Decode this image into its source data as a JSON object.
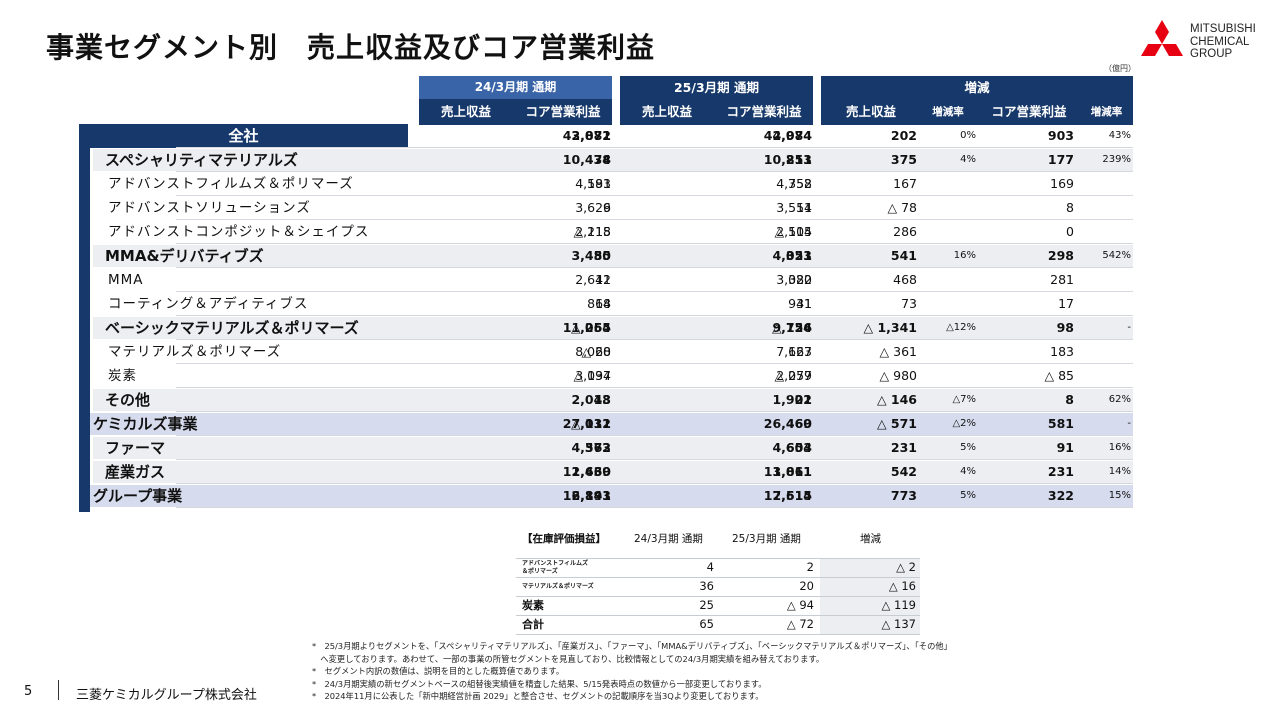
{
  "title": "事業セグメント別　売上収益及びコア営業利益",
  "unit": "（億円）",
  "logo": {
    "line1": "MITSUBISHI",
    "line2": "CHEMICAL",
    "line3": "GROUP"
  },
  "header": {
    "period1": "24/3月期 通期",
    "period2": "25/3月期 通期",
    "change": "増減",
    "sales": "売上収益",
    "core": "コア営業利益",
    "rate": "増減率"
  },
  "rows": [
    {
      "label": "全社",
      "lv": "total",
      "s1": "43,872",
      "c1": "2,081",
      "s2": "44,074",
      "c2": "2,984",
      "ds": "202",
      "dsr": "0%",
      "dc": "903",
      "dcr": "43%"
    },
    {
      "label": "スペシャリティマテリアルズ",
      "lv": "seg",
      "s1": "10,438",
      "c1": "74",
      "s2": "10,813",
      "c2": "251",
      "ds": "375",
      "dsr": "4%",
      "dc": "177",
      "dcr": "239%"
    },
    {
      "label": "アドバンストフィルムズ＆ポリマーズ",
      "lv": "sub",
      "s1": "4,591",
      "c1": "183",
      "s2": "4,758",
      "c2": "352",
      "ds": "167",
      "dsr": "",
      "dc": "169",
      "dcr": ""
    },
    {
      "label": "アドバンストソリューションズ",
      "lv": "sub",
      "s1": "3,629",
      "c1": "6",
      "s2": "3,551",
      "c2": "14",
      "ds": "△ 78",
      "dsr": "",
      "dc": "8",
      "dcr": ""
    },
    {
      "label": "アドバンストコンポジット＆シェイプス",
      "lv": "sub",
      "s1": "2,218",
      "c1": "△ 115",
      "s2": "2,504",
      "c2": "△ 115",
      "ds": "286",
      "dsr": "",
      "dc": "0",
      "dcr": ""
    },
    {
      "label": "MMA&デリバティブズ",
      "lv": "seg",
      "s1": "3,480",
      "c1": "55",
      "s2": "4,021",
      "c2": "353",
      "ds": "541",
      "dsr": "16%",
      "dc": "298",
      "dcr": "542%"
    },
    {
      "label": "MMA",
      "lv": "sub",
      "s1": "2,612",
      "c1": "41",
      "s2": "3,080",
      "c2": "322",
      "ds": "468",
      "dsr": "",
      "dc": "281",
      "dcr": ""
    },
    {
      "label": "コーティング＆アディティブス",
      "lv": "sub",
      "s1": "868",
      "c1": "14",
      "s2": "941",
      "c2": "31",
      "ds": "73",
      "dsr": "",
      "dc": "17",
      "dcr": ""
    },
    {
      "label": "ベーシックマテリアルズ＆ポリマーズ",
      "lv": "seg",
      "s1": "11,065",
      "c1": "△ 254",
      "s2": "9,724",
      "c2": "△ 156",
      "ds": "△ 1,341",
      "dsr": "△12%",
      "dc": "98",
      "dcr": "-"
    },
    {
      "label": "マテリアルズ＆ポリマーズ",
      "lv": "sub",
      "s1": "8,028",
      "c1": "△ 60",
      "s2": "7,667",
      "c2": "123",
      "ds": "△ 361",
      "dsr": "",
      "dc": "183",
      "dcr": ""
    },
    {
      "label": "炭素",
      "lv": "sub",
      "s1": "3,037",
      "c1": "△ 194",
      "s2": "2,057",
      "c2": "△ 279",
      "ds": "△ 980",
      "dsr": "",
      "dc": "△ 85",
      "dcr": ""
    },
    {
      "label": "その他",
      "lv": "seg",
      "s1": "2,048",
      "c1": "13",
      "s2": "1,902",
      "c2": "21",
      "ds": "△ 146",
      "dsr": "△7%",
      "dc": "8",
      "dcr": "62%"
    },
    {
      "label": "ケミカルズ事業",
      "lv": "biz",
      "s1": "27,031",
      "c1": "△ 112",
      "s2": "26,460",
      "c2": "469",
      "ds": "△ 571",
      "dsr": "△2%",
      "dc": "581",
      "dcr": "-"
    },
    {
      "label": "ファーマ",
      "lv": "seg",
      "s1": "4,372",
      "c1": "563",
      "s2": "4,603",
      "c2": "654",
      "ds": "231",
      "dsr": "5%",
      "dc": "91",
      "dcr": "16%"
    },
    {
      "label": "産業ガス",
      "lv": "seg",
      "s1": "12,469",
      "c1": "1,630",
      "s2": "13,011",
      "c2": "1,861",
      "ds": "542",
      "dsr": "4%",
      "dc": "231",
      "dcr": "14%"
    },
    {
      "label": "グループ事業",
      "lv": "biz",
      "s1": "16,841",
      "c1": "2,193",
      "s2": "17,614",
      "c2": "2,515",
      "ds": "773",
      "dsr": "5%",
      "dc": "322",
      "dcr": "15%"
    }
  ],
  "inventory": {
    "title": "【在庫評価損益】",
    "col1": "24/3月期 通期",
    "col2": "25/3月期 通期",
    "col3": "増減",
    "rows": [
      {
        "label": "アドバンストフィルムズ\n＆ポリマーズ",
        "small": true,
        "v1": "4",
        "v2": "2",
        "d": "△ 2"
      },
      {
        "label": "マテリアルズ＆ポリマーズ",
        "small": true,
        "v1": "36",
        "v2": "20",
        "d": "△ 16"
      },
      {
        "label": "炭素",
        "small": false,
        "v1": "25",
        "v2": "△ 94",
        "d": "△ 119"
      },
      {
        "label": "合計",
        "small": false,
        "v1": "65",
        "v2": "△ 72",
        "d": "△ 137"
      }
    ]
  },
  "notes": [
    "*　25/3月期よりセグメントを、「スペシャリティマテリアルズ」、「産業ガス」、「ファーマ」、「MMA&デリバティブズ」、「ベーシックマテリアルズ＆ポリマーズ」、「その他」",
    "　へ変更しております。あわせて、一部の事業の所管セグメントを見直しており、比較情報としての24/3月期実績を組み替えております。",
    "*　セグメント内訳の数値は、説明を目的とした概算値であります。",
    "*　24/3月期実績の新セグメントベースの組替後実績値を精査した結果、5/15発表時点の数値から一部変更しております。",
    "*　2024年11月に公表した「新中期経営計画 2029」と整合させ、セグメントの記載順序を当3Qより変更しております。"
  ],
  "footer": {
    "page": "5",
    "company": "三菱ケミカルグループ株式会社"
  },
  "colors": {
    "navy": "#16386a",
    "blue": "#3a64a8",
    "row_seg": "#eceef1",
    "row_biz": "#d6dcee",
    "logo_red": "#e60012"
  }
}
